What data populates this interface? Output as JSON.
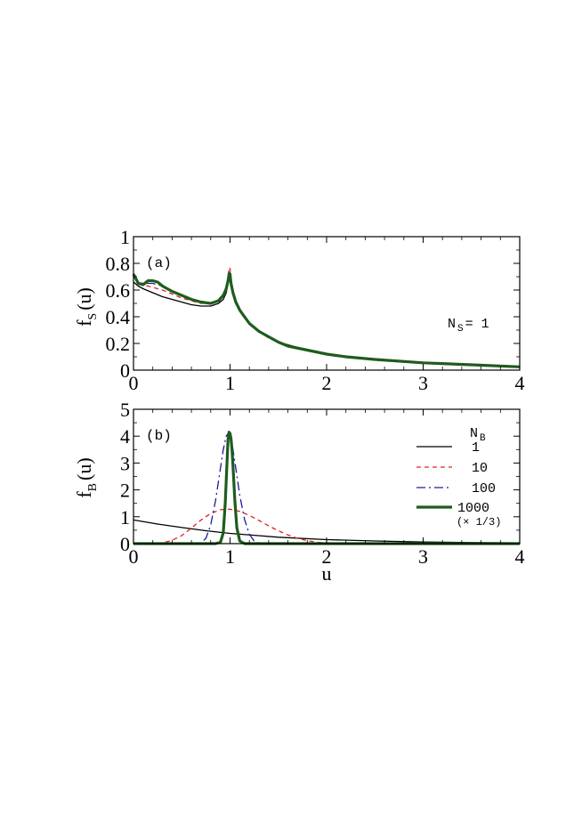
{
  "chart_data": [
    {
      "type": "line",
      "panel_label": "(a)",
      "ylabel_main": "f",
      "ylabel_sub": "S",
      "ylabel_suffix": "(u)",
      "xlim": [
        0,
        4
      ],
      "ylim": [
        0,
        1
      ],
      "x_ticks": [
        "0",
        "1",
        "2",
        "3",
        "4"
      ],
      "y_ticks": [
        "0",
        "0.2",
        "0.4",
        "0.6",
        "0.8",
        "1"
      ],
      "annotation_main": "N",
      "annotation_sub": "S",
      "annotation_value": "= 1",
      "series": [
        {
          "color": "#000000",
          "style": "solid",
          "width": 1.3,
          "x": [
            0,
            0.05,
            0.1,
            0.2,
            0.3,
            0.4,
            0.5,
            0.6,
            0.7,
            0.8,
            0.88,
            0.93,
            0.96,
            0.98,
            0.99,
            1.0,
            1.01,
            1.03,
            1.06,
            1.1,
            1.15,
            1.2,
            1.3,
            1.4,
            1.5,
            1.6,
            1.8,
            2.0,
            2.2,
            2.5,
            3.0,
            3.5,
            4.0
          ],
          "y": [
            0.66,
            0.63,
            0.61,
            0.58,
            0.55,
            0.53,
            0.51,
            0.49,
            0.48,
            0.48,
            0.5,
            0.53,
            0.58,
            0.65,
            0.69,
            0.69,
            0.64,
            0.57,
            0.5,
            0.44,
            0.39,
            0.35,
            0.29,
            0.25,
            0.21,
            0.19,
            0.15,
            0.12,
            0.1,
            0.08,
            0.055,
            0.04,
            0.025
          ]
        },
        {
          "color": "#e02020",
          "style": "dashed",
          "width": 1.3,
          "x": [
            0,
            0.05,
            0.1,
            0.2,
            0.3,
            0.4,
            0.5,
            0.6,
            0.7,
            0.8,
            0.88,
            0.93,
            0.96,
            0.98,
            0.99,
            1.0,
            1.01,
            1.03,
            1.06,
            1.1,
            1.15,
            1.2,
            1.3,
            1.4,
            1.5,
            1.6,
            1.8,
            2.0,
            2.2,
            2.5,
            3.0,
            3.5,
            4.0
          ],
          "y": [
            0.7,
            0.66,
            0.64,
            0.62,
            0.6,
            0.57,
            0.54,
            0.52,
            0.5,
            0.5,
            0.52,
            0.56,
            0.62,
            0.7,
            0.77,
            0.76,
            0.66,
            0.58,
            0.5,
            0.44,
            0.39,
            0.35,
            0.29,
            0.24,
            0.21,
            0.18,
            0.15,
            0.12,
            0.1,
            0.08,
            0.055,
            0.04,
            0.025
          ]
        },
        {
          "color": "#1a1aa0",
          "style": "dashdot",
          "width": 1.3,
          "x": [
            0,
            0.05,
            0.1,
            0.2,
            0.3,
            0.4,
            0.5,
            0.6,
            0.7,
            0.8,
            0.88,
            0.93,
            0.96,
            0.98,
            0.99,
            1.0,
            1.01,
            1.03,
            1.06,
            1.1,
            1.15,
            1.2,
            1.3,
            1.4,
            1.5,
            1.6,
            1.8,
            2.0,
            2.2,
            2.5,
            3.0,
            3.5,
            4.0
          ],
          "y": [
            0.72,
            0.66,
            0.65,
            0.65,
            0.63,
            0.59,
            0.56,
            0.53,
            0.51,
            0.5,
            0.52,
            0.56,
            0.61,
            0.68,
            0.73,
            0.73,
            0.65,
            0.58,
            0.51,
            0.45,
            0.4,
            0.35,
            0.29,
            0.25,
            0.21,
            0.18,
            0.15,
            0.12,
            0.1,
            0.08,
            0.055,
            0.04,
            0.025
          ]
        },
        {
          "color": "#1e5c1e",
          "style": "solid",
          "width": 3.2,
          "x": [
            0,
            0.05,
            0.1,
            0.15,
            0.2,
            0.25,
            0.3,
            0.4,
            0.5,
            0.6,
            0.7,
            0.8,
            0.88,
            0.93,
            0.96,
            0.98,
            0.99,
            1.0,
            1.01,
            1.03,
            1.06,
            1.1,
            1.15,
            1.2,
            1.3,
            1.4,
            1.5,
            1.6,
            1.8,
            2.0,
            2.2,
            2.5,
            3.0,
            3.5,
            4.0
          ],
          "y": [
            0.72,
            0.65,
            0.64,
            0.67,
            0.67,
            0.66,
            0.63,
            0.59,
            0.56,
            0.53,
            0.51,
            0.5,
            0.52,
            0.56,
            0.61,
            0.67,
            0.72,
            0.72,
            0.65,
            0.58,
            0.51,
            0.45,
            0.4,
            0.35,
            0.29,
            0.25,
            0.21,
            0.18,
            0.15,
            0.12,
            0.1,
            0.08,
            0.055,
            0.04,
            0.025
          ]
        }
      ]
    },
    {
      "type": "line",
      "panel_label": "(b)",
      "ylabel_main": "f",
      "ylabel_sub": "B",
      "ylabel_suffix": "(u)",
      "xlabel": "u",
      "xlim": [
        0,
        4
      ],
      "ylim": [
        0,
        5
      ],
      "x_ticks": [
        "0",
        "1",
        "2",
        "3",
        "4"
      ],
      "y_ticks": [
        "0",
        "1",
        "2",
        "3",
        "4",
        "5"
      ],
      "legend_title_main": "N",
      "legend_title_sub": "B",
      "legend_note": "(× 1/3)",
      "series": [
        {
          "name": "1",
          "color": "#000000",
          "style": "solid",
          "width": 1.3,
          "x": [
            0,
            0.25,
            0.5,
            0.75,
            1.0,
            1.25,
            1.5,
            2.0,
            2.5,
            3.0,
            3.5,
            4.0
          ],
          "y": [
            0.88,
            0.73,
            0.6,
            0.48,
            0.38,
            0.31,
            0.24,
            0.15,
            0.1,
            0.06,
            0.04,
            0.03
          ]
        },
        {
          "name": "10",
          "color": "#e02020",
          "style": "dashed",
          "width": 1.3,
          "x": [
            0,
            0.2,
            0.3,
            0.4,
            0.5,
            0.6,
            0.7,
            0.8,
            0.9,
            1.0,
            1.1,
            1.2,
            1.3,
            1.4,
            1.5,
            1.6,
            1.7,
            1.8,
            1.9,
            2.0,
            2.2
          ],
          "y": [
            0,
            0.0,
            0.03,
            0.12,
            0.3,
            0.58,
            0.88,
            1.12,
            1.26,
            1.28,
            1.2,
            1.05,
            0.86,
            0.66,
            0.48,
            0.32,
            0.2,
            0.11,
            0.05,
            0.02,
            0
          ]
        },
        {
          "name": "100",
          "color": "#1a1aa0",
          "style": "dashdot",
          "width": 1.3,
          "x": [
            0,
            0.6,
            0.7,
            0.75,
            0.8,
            0.85,
            0.9,
            0.93,
            0.96,
            0.98,
            1.0,
            1.03,
            1.06,
            1.1,
            1.15,
            1.2,
            1.25,
            1.3,
            1.4,
            4.0
          ],
          "y": [
            0,
            0,
            0.03,
            0.2,
            0.7,
            1.6,
            2.8,
            3.5,
            4.0,
            4.1,
            4.0,
            3.5,
            2.8,
            1.8,
            0.9,
            0.35,
            0.1,
            0.02,
            0,
            0
          ]
        },
        {
          "name": "1000",
          "color": "#1e5c1e",
          "style": "solid",
          "width": 3.2,
          "x": [
            0,
            0.85,
            0.9,
            0.93,
            0.95,
            0.97,
            0.98,
            0.99,
            1.0,
            1.01,
            1.02,
            1.03,
            1.05,
            1.07,
            1.1,
            1.15,
            4.0
          ],
          "y": [
            0,
            0,
            0.05,
            0.4,
            1.5,
            3.1,
            3.9,
            4.15,
            4.1,
            3.9,
            3.5,
            2.9,
            1.6,
            0.6,
            0.1,
            0,
            0
          ]
        }
      ]
    }
  ]
}
